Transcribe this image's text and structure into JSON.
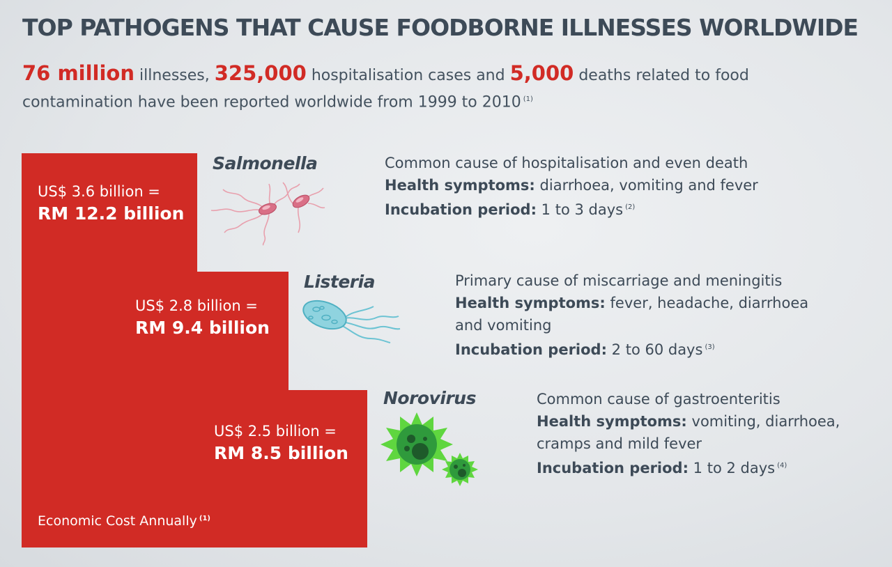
{
  "title": "TOP PATHOGENS THAT CAUSE FOODBORNE ILLNESSES WORLDWIDE",
  "intro": {
    "illnesses_value": "76 million",
    "illnesses_text": " illnesses, ",
    "hosp_value": "325,000",
    "hosp_text": " hospitalisation cases and ",
    "deaths_value": "5,000",
    "deaths_text": " deaths related to food contamination have been reported worldwide from 1999 to 2010",
    "ref": "(1)"
  },
  "colors": {
    "accent": "#d12b25",
    "text": "#3d4a57"
  },
  "cost_caption": {
    "text": "Economic Cost Annually",
    "ref": "(1)"
  },
  "pathogens": [
    {
      "name": "Salmonella",
      "icon": "salmonella-bacteria-icon",
      "usd": "US$ 3.6 billion =",
      "rm": "RM 12.2 billion",
      "description": "Common cause of hospitalisation and even death",
      "symptoms_label": "Health symptoms:",
      "symptoms": "diarrhoea, vomiting and fever",
      "incubation_label": "Incubation period:",
      "incubation": "1 to 3 days",
      "ref": "(2)"
    },
    {
      "name": "Listeria",
      "icon": "listeria-bacteria-icon",
      "usd": "US$ 2.8 billion =",
      "rm": "RM 9.4 billion",
      "description": "Primary cause of miscarriage and meningitis",
      "symptoms_label": "Health symptoms:",
      "symptoms_line1": "fever, headache, diarrhoea",
      "symptoms_line2": "and vomiting",
      "incubation_label": "Incubation period:",
      "incubation": "2 to 60 days",
      "ref": "(3)"
    },
    {
      "name": "Norovirus",
      "icon": "norovirus-virus-icon",
      "usd": "US$ 2.5 billion =",
      "rm": "RM 8.5 billion",
      "description": "Common cause of gastroenteritis",
      "symptoms_label": "Health symptoms:",
      "symptoms_line1": "vomiting, diarrhoea,",
      "symptoms_line2": "cramps and mild fever",
      "incubation_label": "Incubation period:",
      "incubation": "1 to 2 days",
      "ref": "(4)"
    }
  ]
}
